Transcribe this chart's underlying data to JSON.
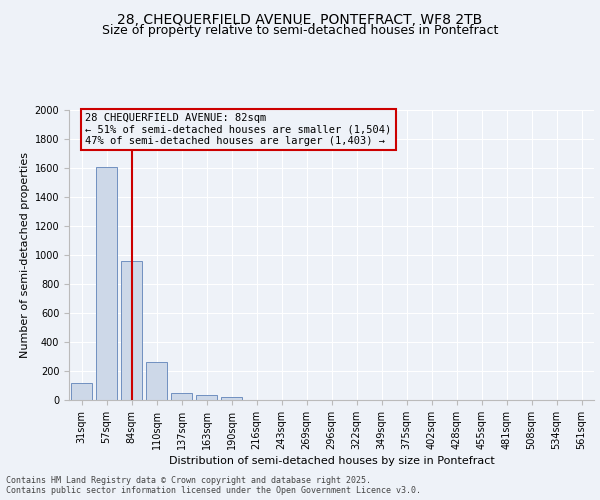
{
  "title_line1": "28, CHEQUERFIELD AVENUE, PONTEFRACT, WF8 2TB",
  "title_line2": "Size of property relative to semi-detached houses in Pontefract",
  "xlabel": "Distribution of semi-detached houses by size in Pontefract",
  "ylabel": "Number of semi-detached properties",
  "categories": [
    "31sqm",
    "57sqm",
    "84sqm",
    "110sqm",
    "137sqm",
    "163sqm",
    "190sqm",
    "216sqm",
    "243sqm",
    "269sqm",
    "296sqm",
    "322sqm",
    "349sqm",
    "375sqm",
    "402sqm",
    "428sqm",
    "455sqm",
    "481sqm",
    "508sqm",
    "534sqm",
    "561sqm"
  ],
  "values": [
    120,
    1610,
    960,
    260,
    45,
    35,
    20,
    0,
    0,
    0,
    0,
    0,
    0,
    0,
    0,
    0,
    0,
    0,
    0,
    0,
    0
  ],
  "bar_color": "#cdd8e8",
  "bar_edge_color": "#7090c0",
  "red_line_x": 2,
  "red_line_color": "#cc0000",
  "annotation_text": "28 CHEQUERFIELD AVENUE: 82sqm\n← 51% of semi-detached houses are smaller (1,504)\n47% of semi-detached houses are larger (1,403) →",
  "annotation_box_edge_color": "#cc0000",
  "ylim": [
    0,
    2000
  ],
  "yticks": [
    0,
    200,
    400,
    600,
    800,
    1000,
    1200,
    1400,
    1600,
    1800,
    2000
  ],
  "background_color": "#eef2f8",
  "grid_color": "#ffffff",
  "footer_text": "Contains HM Land Registry data © Crown copyright and database right 2025.\nContains public sector information licensed under the Open Government Licence v3.0.",
  "title_fontsize": 10,
  "subtitle_fontsize": 9,
  "axis_label_fontsize": 8,
  "tick_fontsize": 7,
  "annotation_fontsize": 7.5
}
